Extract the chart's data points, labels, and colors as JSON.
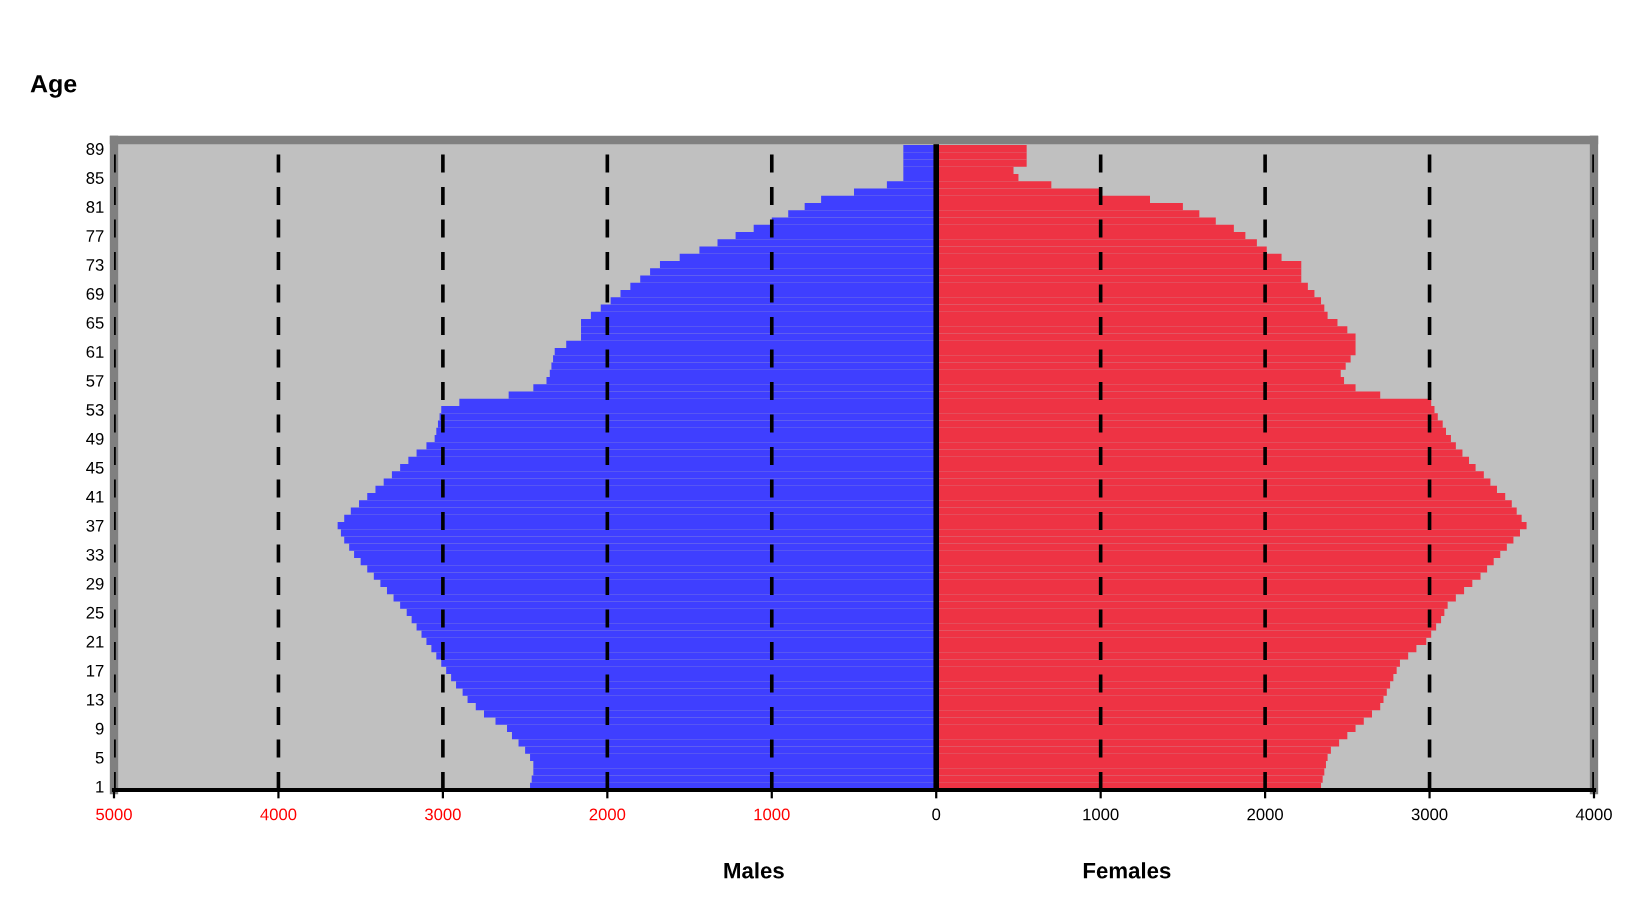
{
  "chart_data": {
    "type": "bar",
    "orientation": "horizontal",
    "stacked": true,
    "ylabel": "Age",
    "annotations": [
      "Males",
      "Females"
    ],
    "categories": [
      "89",
      null,
      null,
      null,
      "85",
      null,
      null,
      null,
      "81",
      null,
      null,
      null,
      "77",
      null,
      null,
      null,
      "73",
      null,
      null,
      null,
      "69",
      null,
      null,
      null,
      "65",
      null,
      null,
      null,
      "61",
      null,
      null,
      null,
      "57",
      null,
      null,
      null,
      "53",
      null,
      null,
      null,
      "49",
      null,
      null,
      null,
      "45",
      null,
      null,
      null,
      "41",
      null,
      null,
      null,
      "37",
      null,
      null,
      null,
      "33",
      null,
      null,
      null,
      "29",
      null,
      null,
      null,
      "25",
      null,
      null,
      null,
      "21",
      null,
      null,
      null,
      "17",
      null,
      null,
      null,
      "13",
      null,
      null,
      null,
      "9",
      null,
      null,
      null,
      "5",
      null,
      null,
      null,
      "1"
    ],
    "series": [
      {
        "color": "#3f3fff",
        "values": [
          -200,
          -200,
          -200,
          -200,
          -200,
          -300,
          -500,
          -700,
          -800,
          -900,
          -1000,
          -1110,
          -1220,
          -1330,
          -1440,
          -1560,
          -1680,
          -1740,
          -1800,
          -1860,
          -1920,
          -1980,
          -2040,
          -2100,
          -2160,
          -2160,
          -2160,
          -2250,
          -2320,
          -2330,
          -2340,
          -2350,
          -2370,
          -2450,
          -2600,
          -2900,
          -3010,
          -3020,
          -3030,
          -3040,
          -3050,
          -3100,
          -3160,
          -3210,
          -3260,
          -3310,
          -3360,
          -3410,
          -3460,
          -3510,
          -3560,
          -3600,
          -3640,
          -3620,
          -3600,
          -3570,
          -3540,
          -3500,
          -3460,
          -3420,
          -3380,
          -3340,
          -3300,
          -3260,
          -3220,
          -3190,
          -3160,
          -3130,
          -3100,
          -3070,
          -3040,
          -3010,
          -2980,
          -2950,
          -2920,
          -2880,
          -2850,
          -2800,
          -2750,
          -2680,
          -2610,
          -2580,
          -2540,
          -2500,
          -2470,
          -2450,
          -2450,
          -2460,
          -2470
        ]
      },
      {
        "color": "#ee3344",
        "values": [
          550,
          550,
          550,
          470,
          500,
          700,
          1000,
          1300,
          1500,
          1600,
          1700,
          1810,
          1880,
          1950,
          2010,
          2100,
          2220,
          2220,
          2220,
          2260,
          2300,
          2340,
          2360,
          2380,
          2440,
          2500,
          2550,
          2550,
          2550,
          2520,
          2490,
          2460,
          2480,
          2550,
          2700,
          3010,
          3030,
          3050,
          3080,
          3100,
          3130,
          3160,
          3200,
          3240,
          3280,
          3330,
          3370,
          3410,
          3460,
          3500,
          3530,
          3560,
          3590,
          3550,
          3510,
          3470,
          3430,
          3390,
          3350,
          3310,
          3260,
          3210,
          3160,
          3110,
          3090,
          3070,
          3040,
          3010,
          2980,
          2920,
          2870,
          2820,
          2800,
          2780,
          2760,
          2740,
          2720,
          2700,
          2650,
          2600,
          2550,
          2500,
          2450,
          2400,
          2380,
          2370,
          2360,
          2350,
          2340
        ]
      }
    ],
    "xlim": [
      -5000,
      4000
    ],
    "xticks": [
      {
        "value": -5000,
        "label": "5000"
      },
      {
        "value": -4000,
        "label": "4000"
      },
      {
        "value": -3000,
        "label": "3000"
      },
      {
        "value": -2000,
        "label": "2000"
      },
      {
        "value": -1000,
        "label": "1000"
      },
      0,
      1000,
      2000,
      3000,
      4000
    ],
    "grid": "x",
    "legend": false
  }
}
